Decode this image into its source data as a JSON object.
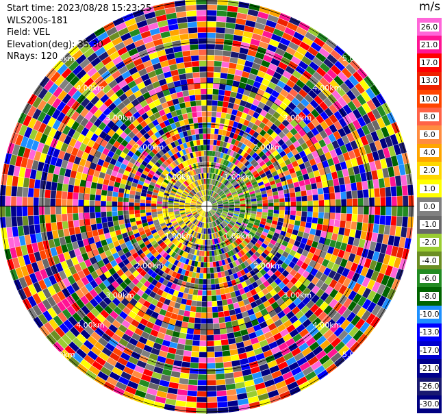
{
  "header": {
    "start_time": "Start time: 2023/08/28 15:23:25",
    "instrument": "WLS200s-181",
    "field": "Field: VEL",
    "elevation": "Elevation(deg): 35.30",
    "nrays": "NRays: 120"
  },
  "chart_data": {
    "type": "heatmap",
    "subtype": "polar-ppi",
    "field": "VEL",
    "n_rays": 120,
    "range_rings_labels": [
      "1.00km",
      "2.00km",
      "3.00km",
      "4.00km",
      "5.00km"
    ],
    "colorbar": {
      "unit": "m/s",
      "ticks": [
        "26.0",
        "21.0",
        "17.0",
        "13.0",
        "10.0",
        "8.0",
        "6.0",
        "4.0",
        "2.0",
        "1.0",
        "0.0",
        "-1.0",
        "-2.0",
        "-4.0",
        "-6.0",
        "-8.0",
        "-10.0",
        "-13.0",
        "-17.0",
        "-21.0",
        "-26.0",
        "-30.0"
      ],
      "colors": [
        "#ff66d9",
        "#ff1493",
        "#ff0000",
        "#ee2200",
        "#ff4500",
        "#ff6347",
        "#ff8c40",
        "#ffa500",
        "#ffd700",
        "#ffff00",
        "#808080",
        "#696969",
        "#9acd32",
        "#6b8e23",
        "#228b22",
        "#006400",
        "#1e90ff",
        "#0000ff",
        "#0000cd",
        "#00008b",
        "#191970",
        "#000080"
      ]
    },
    "near_pattern": {
      "approaching_side": "east",
      "approaching_colors": [
        "#9acd32",
        "#808080",
        "#228b22"
      ],
      "receding_side": "west",
      "receding_colors": [
        "#ffd700",
        "#ffff00",
        "#808080"
      ]
    }
  }
}
